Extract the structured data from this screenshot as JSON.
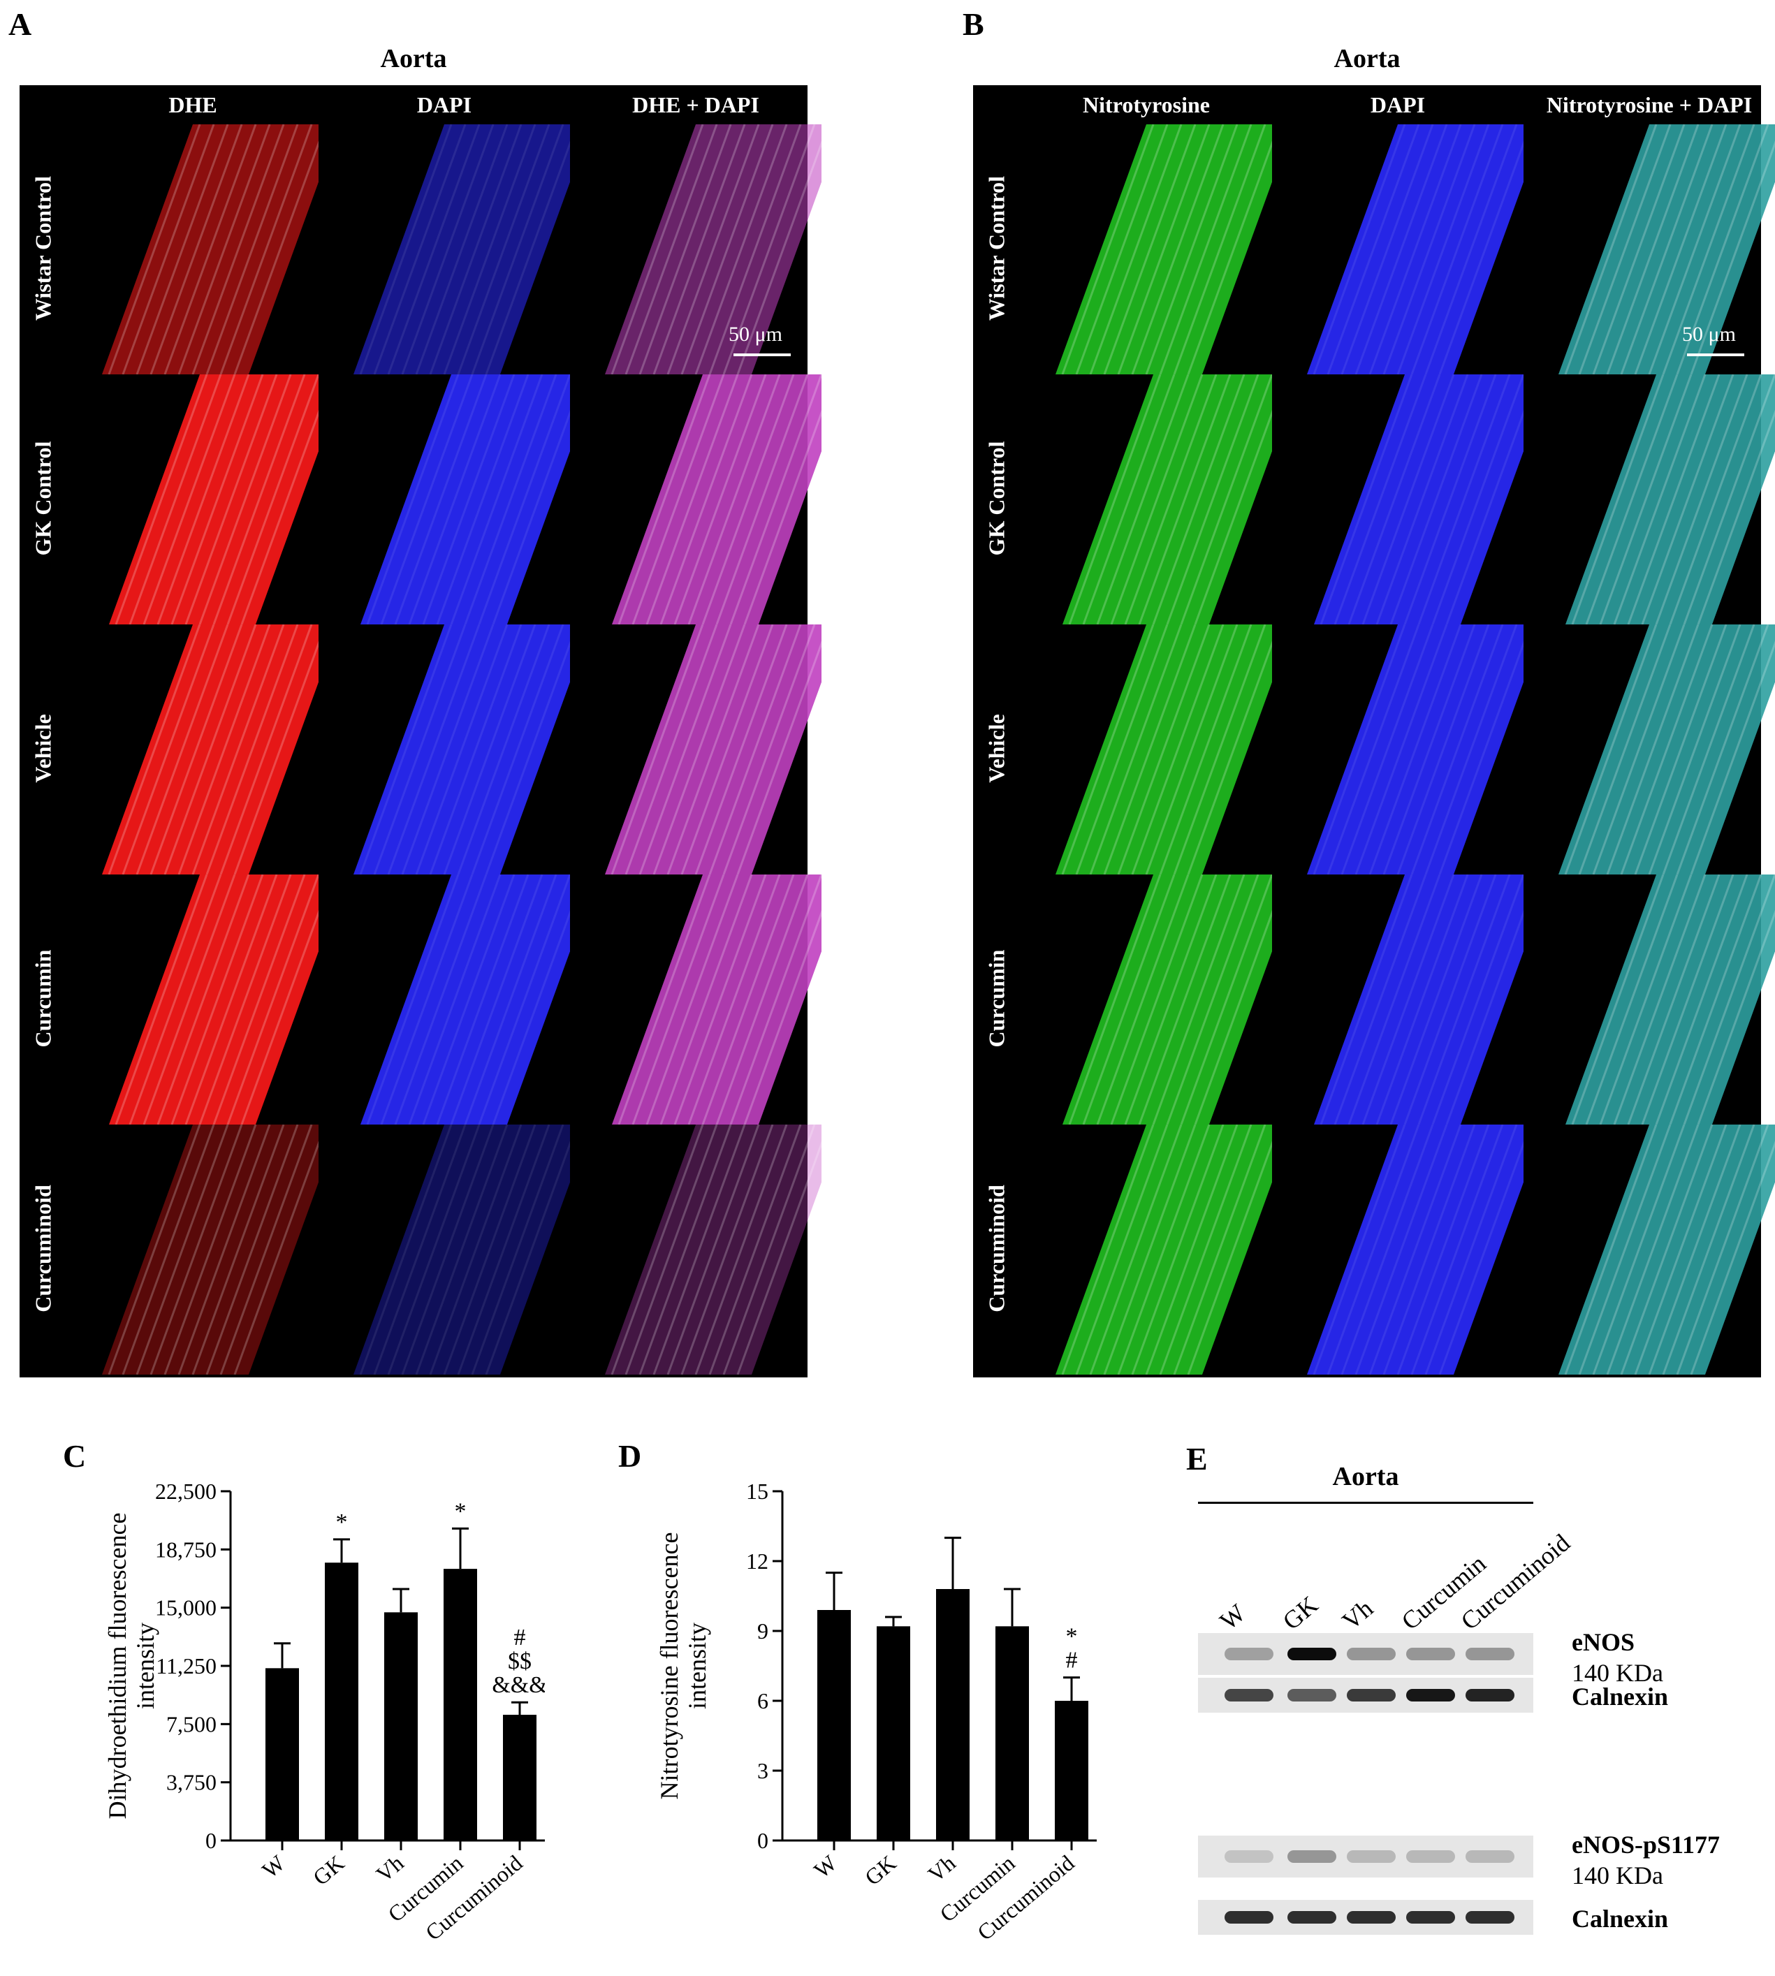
{
  "panel_a": {
    "letter": "A",
    "title": "Aorta",
    "columns": [
      "DHE",
      "DAPI",
      "DHE + DAPI"
    ],
    "rows": [
      "Wistar Control",
      "GK  Control",
      "Vehicle",
      "Curcumin",
      "Curcuminoid"
    ],
    "scale_bar": "50 μm",
    "colors": {
      "stain1": "#ff1a1a",
      "stain2": "#2a2aff",
      "merge": "#c040c0"
    }
  },
  "panel_b": {
    "letter": "B",
    "title": "Aorta",
    "columns": [
      "Nitrotyrosine",
      "DAPI",
      "Nitrotyrosine + DAPI"
    ],
    "rows": [
      "Wistar Control",
      "GK  Control",
      "Vehicle",
      "Curcumin",
      "Curcuminoid"
    ],
    "scale_bar": "50 μm",
    "colors": {
      "stain1": "#20c020",
      "stain2": "#2a2aff",
      "merge": "#2ea0a0"
    }
  },
  "chart_data": [
    {
      "panel": "C",
      "type": "bar",
      "categories": [
        "W",
        "GK",
        "Vh",
        "Curcumin",
        "Curcuminoid"
      ],
      "values": [
        11100,
        17900,
        14700,
        17500,
        8100
      ],
      "errors": [
        1600,
        1500,
        1500,
        2600,
        800
      ],
      "annotations": [
        [],
        [
          "*"
        ],
        [],
        [
          "*"
        ],
        [
          "#",
          "$$",
          "&&&"
        ]
      ],
      "ylabel": "Dihydroethidium fluorescence intensity",
      "ylim": [
        0,
        22500
      ],
      "yticks": [
        "0",
        "3,750",
        "7,500",
        "11,250",
        "15,000",
        "18,750",
        "22,500"
      ],
      "ytick_values": [
        0,
        3750,
        7500,
        11250,
        15000,
        18750,
        22500
      ]
    },
    {
      "panel": "D",
      "type": "bar",
      "categories": [
        "W",
        "GK",
        "Vh",
        "Curcumin",
        "Curcuminoid"
      ],
      "values": [
        9.9,
        9.2,
        10.8,
        9.2,
        6.0
      ],
      "errors": [
        1.6,
        0.4,
        2.2,
        1.6,
        1.0
      ],
      "annotations": [
        [],
        [],
        [],
        [],
        [
          "*",
          "#"
        ]
      ],
      "ylabel": "Nitrotyrosine fluorescence intensity",
      "ylim": [
        0,
        15
      ],
      "yticks": [
        "0",
        "3",
        "6",
        "9",
        "12",
        "15"
      ],
      "ytick_values": [
        0,
        3,
        6,
        9,
        12,
        15
      ]
    }
  ],
  "panel_e": {
    "letter": "E",
    "title": "Aorta",
    "lanes": [
      "W",
      "GK",
      "Vh",
      "Curcumin",
      "Curcuminoid"
    ],
    "blots": [
      {
        "name": "eNOS",
        "size": "140 KDa",
        "intensity": [
          0.3,
          0.95,
          0.35,
          0.35,
          0.35
        ]
      },
      {
        "name": "Calnexin",
        "size": "",
        "intensity": [
          0.7,
          0.6,
          0.75,
          0.9,
          0.85
        ]
      },
      {
        "name": "eNOS-pS1177",
        "size": "140 KDa",
        "intensity": [
          0.15,
          0.35,
          0.2,
          0.2,
          0.2
        ]
      },
      {
        "name": "Calnexin",
        "size": "",
        "intensity": [
          0.8,
          0.8,
          0.8,
          0.8,
          0.8
        ]
      }
    ]
  }
}
